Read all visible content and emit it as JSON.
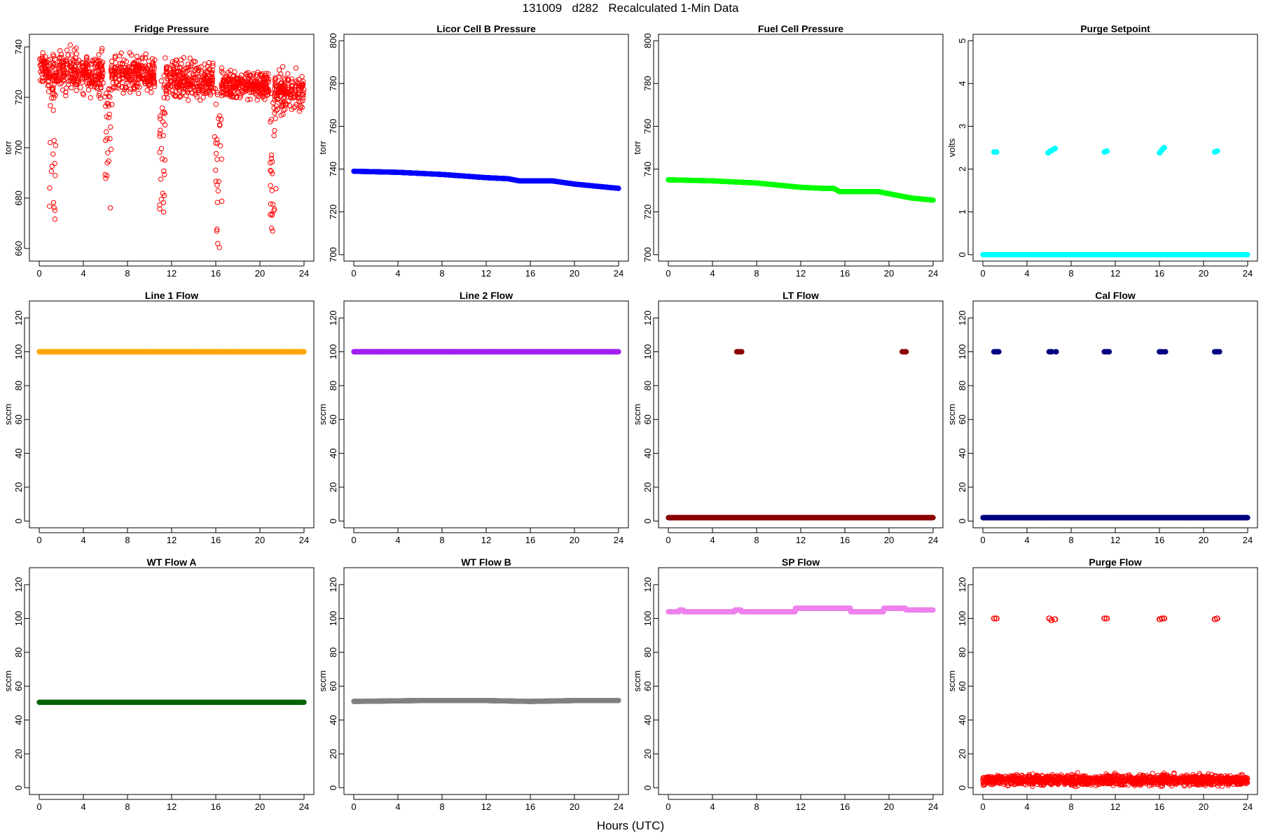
{
  "figure": {
    "title": "131009   d282   Recalculated 1-Min Data",
    "xlabel": "Hours (UTC)"
  },
  "chart_data": [
    {
      "type": "scatter",
      "title": "Fridge Pressure",
      "ylabel": "torr",
      "xlim": [
        0,
        24
      ],
      "ylim": [
        655,
        745
      ],
      "xticks": [
        0,
        4,
        8,
        12,
        16,
        20,
        24
      ],
      "yticks": [
        660,
        680,
        700,
        720,
        740
      ],
      "color": "#ff0000",
      "marker": "open-circle",
      "series": [
        {
          "kind": "noisy",
          "segments": [
            [
              0,
              1,
              731,
              5
            ],
            [
              1.2,
              5.8,
              730,
              7
            ],
            [
              6.5,
              10.5,
              729,
              6
            ],
            [
              11.3,
              15.8,
              727,
              6
            ],
            [
              16.5,
              20.8,
              725,
              5
            ],
            [
              21.3,
              24,
              722,
              6
            ]
          ],
          "dips": [
            [
              0.8,
              1.5,
              668,
              731
            ],
            [
              5.9,
              6.6,
              666,
              729
            ],
            [
              10.9,
              11.4,
              662,
              727
            ],
            [
              15.9,
              16.6,
              656,
              725
            ],
            [
              20.9,
              21.5,
              662,
              722
            ]
          ]
        }
      ]
    },
    {
      "type": "scatter",
      "title": "Licor Cell B Pressure",
      "ylabel": "torr",
      "xlim": [
        0,
        24
      ],
      "ylim": [
        697,
        803
      ],
      "xticks": [
        0,
        4,
        8,
        12,
        16,
        20,
        24
      ],
      "yticks": [
        700,
        720,
        740,
        760,
        780,
        800
      ],
      "color": "#0000ff",
      "marker": "filled",
      "series": [
        {
          "kind": "line",
          "x": [
            0,
            4,
            8,
            12,
            14,
            15,
            16,
            18,
            20,
            22,
            24
          ],
          "y": [
            739,
            738.5,
            737.5,
            736,
            735.5,
            734.5,
            734.5,
            734.5,
            733,
            732,
            731
          ]
        }
      ]
    },
    {
      "type": "scatter",
      "title": "Fuel Cell Pressure",
      "ylabel": "torr",
      "xlim": [
        0,
        24
      ],
      "ylim": [
        697,
        803
      ],
      "xticks": [
        0,
        4,
        8,
        12,
        16,
        20,
        24
      ],
      "yticks": [
        700,
        720,
        740,
        760,
        780,
        800
      ],
      "color": "#00ff00",
      "marker": "filled",
      "series": [
        {
          "kind": "line",
          "x": [
            0,
            4,
            8,
            10,
            12,
            14,
            15,
            15.5,
            16,
            18,
            19,
            20,
            22,
            24
          ],
          "y": [
            735,
            734.5,
            733.5,
            732.5,
            731.5,
            731,
            731,
            729.5,
            729.5,
            729.5,
            729.5,
            728.5,
            726.5,
            725.5
          ]
        }
      ]
    },
    {
      "type": "scatter",
      "title": "Purge Setpoint",
      "ylabel": "volts",
      "xlim": [
        0,
        24
      ],
      "ylim": [
        -0.15,
        5.15
      ],
      "xticks": [
        0,
        4,
        8,
        12,
        16,
        20,
        24
      ],
      "yticks": [
        0,
        1,
        2,
        3,
        4,
        5
      ],
      "color": "#00ffff",
      "marker": "filled",
      "series": [
        {
          "kind": "flat",
          "y": 0
        },
        {
          "kind": "clusters",
          "points": [
            [
              1.0,
              2.4
            ],
            [
              1.2,
              2.4
            ],
            [
              5.9,
              2.38
            ],
            [
              6.1,
              2.42
            ],
            [
              6.3,
              2.45
            ],
            [
              6.5,
              2.48
            ],
            [
              11.0,
              2.4
            ],
            [
              11.2,
              2.42
            ],
            [
              16.0,
              2.38
            ],
            [
              16.2,
              2.45
            ],
            [
              16.4,
              2.5
            ],
            [
              21.0,
              2.4
            ],
            [
              21.2,
              2.42
            ]
          ]
        }
      ]
    },
    {
      "type": "scatter",
      "title": "Line 1 Flow",
      "ylabel": "sccm",
      "xlim": [
        0,
        24
      ],
      "ylim": [
        -4,
        130
      ],
      "xticks": [
        0,
        4,
        8,
        12,
        16,
        20,
        24
      ],
      "yticks": [
        0,
        20,
        40,
        60,
        80,
        100,
        120
      ],
      "color": "#ffa500",
      "marker": "filled",
      "series": [
        {
          "kind": "flat",
          "y": 100
        }
      ]
    },
    {
      "type": "scatter",
      "title": "Line 2 Flow",
      "ylabel": "sccm",
      "xlim": [
        0,
        24
      ],
      "ylim": [
        -4,
        130
      ],
      "xticks": [
        0,
        4,
        8,
        12,
        16,
        20,
        24
      ],
      "yticks": [
        0,
        20,
        40,
        60,
        80,
        100,
        120
      ],
      "color": "#a020f0",
      "marker": "filled",
      "series": [
        {
          "kind": "flat",
          "y": 100
        }
      ]
    },
    {
      "type": "scatter",
      "title": "LT Flow",
      "ylabel": "sccm",
      "xlim": [
        0,
        24
      ],
      "ylim": [
        -4,
        130
      ],
      "xticks": [
        0,
        4,
        8,
        12,
        16,
        20,
        24
      ],
      "yticks": [
        0,
        20,
        40,
        60,
        80,
        100,
        120
      ],
      "color": "#8b0000",
      "marker": "filled",
      "series": [
        {
          "kind": "flat",
          "y": 2
        },
        {
          "kind": "clusters",
          "points": [
            [
              6.2,
              100
            ],
            [
              6.4,
              100
            ],
            [
              6.6,
              100
            ],
            [
              21.2,
              100
            ],
            [
              21.4,
              100
            ],
            [
              21.5,
              100
            ]
          ]
        }
      ]
    },
    {
      "type": "scatter",
      "title": "Cal Flow",
      "ylabel": "sccm",
      "xlim": [
        0,
        24
      ],
      "ylim": [
        -4,
        130
      ],
      "xticks": [
        0,
        4,
        8,
        12,
        16,
        20,
        24
      ],
      "yticks": [
        0,
        20,
        40,
        60,
        80,
        100,
        120
      ],
      "color": "#000080",
      "marker": "filled",
      "series": [
        {
          "kind": "flat",
          "y": 2
        },
        {
          "kind": "clusters",
          "points": [
            [
              1.0,
              100
            ],
            [
              1.2,
              100
            ],
            [
              1.4,
              100
            ],
            [
              6.0,
              100
            ],
            [
              6.2,
              100
            ],
            [
              6.6,
              100
            ],
            [
              11.0,
              100
            ],
            [
              11.2,
              100
            ],
            [
              11.4,
              100
            ],
            [
              16.0,
              100
            ],
            [
              16.2,
              100
            ],
            [
              16.5,
              100
            ],
            [
              21.0,
              100
            ],
            [
              21.2,
              100
            ],
            [
              21.4,
              100
            ]
          ]
        }
      ]
    },
    {
      "type": "scatter",
      "title": "WT Flow A",
      "ylabel": "sccm",
      "xlim": [
        0,
        24
      ],
      "ylim": [
        -4,
        130
      ],
      "xticks": [
        0,
        4,
        8,
        12,
        16,
        20,
        24
      ],
      "yticks": [
        0,
        20,
        40,
        60,
        80,
        100,
        120
      ],
      "color": "#006400",
      "marker": "filled",
      "series": [
        {
          "kind": "flat",
          "y": 50.5
        }
      ]
    },
    {
      "type": "scatter",
      "title": "WT Flow B",
      "ylabel": "sccm",
      "xlim": [
        0,
        24
      ],
      "ylim": [
        -4,
        130
      ],
      "xticks": [
        0,
        4,
        8,
        12,
        16,
        20,
        24
      ],
      "yticks": [
        0,
        20,
        40,
        60,
        80,
        100,
        120
      ],
      "color": "#808080",
      "marker": "filled",
      "series": [
        {
          "kind": "line",
          "x": [
            0,
            6,
            12,
            16,
            20,
            24
          ],
          "y": [
            51,
            51.5,
            51.5,
            51,
            51.5,
            51.5
          ]
        }
      ]
    },
    {
      "type": "scatter",
      "title": "SP Flow",
      "ylabel": "sccm",
      "xlim": [
        0,
        24
      ],
      "ylim": [
        -4,
        130
      ],
      "xticks": [
        0,
        4,
        8,
        12,
        16,
        20,
        24
      ],
      "yticks": [
        0,
        20,
        40,
        60,
        80,
        100,
        120
      ],
      "color": "#ee82ee",
      "marker": "filled",
      "series": [
        {
          "kind": "steps",
          "x": [
            0,
            1,
            1.4,
            6,
            6.6,
            11,
            11.5,
            16,
            16.5,
            19,
            19.5,
            21.2,
            21.5,
            24
          ],
          "y": [
            104,
            105,
            104,
            105,
            104,
            104,
            106,
            106,
            104,
            104,
            106,
            106,
            105,
            106
          ]
        }
      ]
    },
    {
      "type": "scatter",
      "title": "Purge Flow",
      "ylabel": "sccm",
      "xlim": [
        0,
        24
      ],
      "ylim": [
        -4,
        130
      ],
      "xticks": [
        0,
        4,
        8,
        12,
        16,
        20,
        24
      ],
      "yticks": [
        0,
        20,
        40,
        60,
        80,
        100,
        120
      ],
      "color": "#ff0000",
      "marker": "open-circle",
      "series": [
        {
          "kind": "noisy",
          "segments": [
            [
              0,
              24,
              4.5,
              2.5
            ]
          ],
          "dips": []
        },
        {
          "kind": "clusters",
          "points": [
            [
              1.0,
              100
            ],
            [
              1.2,
              100
            ],
            [
              6.0,
              100
            ],
            [
              6.2,
              99
            ],
            [
              6.5,
              99.5
            ],
            [
              11.0,
              100
            ],
            [
              11.2,
              100
            ],
            [
              16.0,
              99.5
            ],
            [
              16.2,
              100
            ],
            [
              16.4,
              100
            ],
            [
              21.0,
              99.5
            ],
            [
              21.2,
              100
            ]
          ]
        }
      ]
    }
  ]
}
